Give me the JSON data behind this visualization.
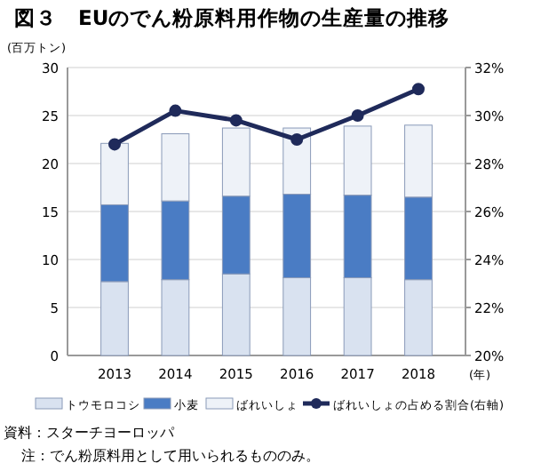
{
  "chart_data": {
    "type": "bar",
    "stacked": true,
    "title": "図３　EUのでん粉原料用作物の生産量の推移",
    "ylabel": "(百万トン)",
    "xlabel": "(年)",
    "categories": [
      "2013",
      "2014",
      "2015",
      "2016",
      "2017",
      "2018"
    ],
    "series": [
      {
        "name": "トウモロコシ",
        "color": "#d9e2f0",
        "values": [
          7.7,
          7.9,
          8.5,
          8.1,
          8.1,
          7.9
        ]
      },
      {
        "name": "小麦",
        "color": "#4a7cc4",
        "values": [
          8.0,
          8.2,
          8.1,
          8.7,
          8.6,
          8.6
        ]
      },
      {
        "name": "ばれいしょ",
        "color": "#eef2f8",
        "values": [
          6.4,
          7.0,
          7.1,
          6.9,
          7.2,
          7.5
        ]
      },
      {
        "name": "ばれいしょの占める割合(右軸)",
        "color": "#1f2a5a",
        "type": "line",
        "axis": "y2",
        "marker": "circle",
        "values": [
          28.8,
          30.2,
          29.8,
          29.0,
          30.0,
          31.1
        ]
      }
    ],
    "ylim": [
      0,
      30
    ],
    "yticks": [
      0,
      5,
      10,
      15,
      20,
      25,
      30
    ],
    "y2lim": [
      20,
      32
    ],
    "y2ticks": [
      {
        "value": 20,
        "label": "20%"
      },
      {
        "value": 22,
        "label": "22%"
      },
      {
        "value": 24,
        "label": "24%"
      },
      {
        "value": 26,
        "label": "26%"
      },
      {
        "value": 28,
        "label": "28%"
      },
      {
        "value": 30,
        "label": "30%"
      },
      {
        "value": 32,
        "label": "32%"
      }
    ],
    "grid": "y",
    "legend": "bottom",
    "annotations": [
      "資料：スターチヨーロッパ",
      "注：でん粉原料用として用いられるもののみ。"
    ]
  }
}
